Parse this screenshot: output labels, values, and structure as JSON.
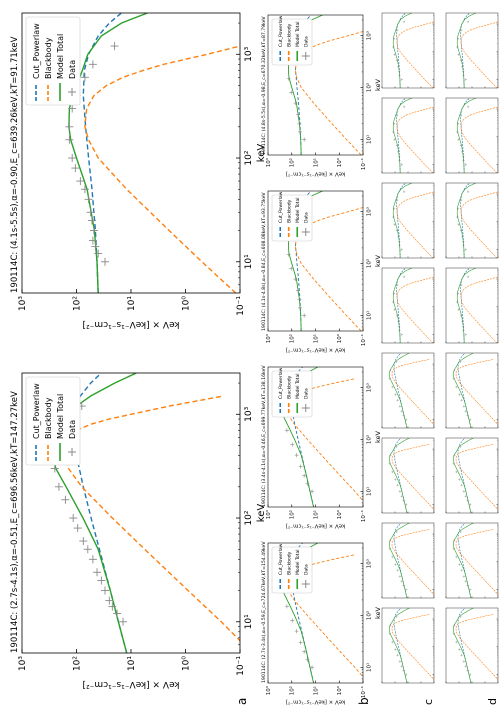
{
  "figure_labels": {
    "a": "a",
    "b": "b",
    "c": "c",
    "d": "d"
  },
  "chart_data": [
    {
      "type": "line",
      "panel": "a",
      "title": "190114C: (2.7s-4.1s),α=-0.51,E_c=696.56keV,kT=147.27keV",
      "xlabel": "keV",
      "ylabel": "keV × [keV⁻¹s⁻¹cm⁻²]",
      "xscale": "log",
      "yscale": "log",
      "xlim": [
        5,
        2500
      ],
      "ylim": [
        0.1,
        1000
      ],
      "xticks": [
        "10¹",
        "10²",
        "10³"
      ],
      "yticks": [
        "10⁻¹",
        "10⁰",
        "10¹",
        "10²",
        "10³"
      ],
      "legend": {
        "position": "top-right",
        "entries": [
          "Cut_Powerlaw",
          "Blackbody",
          "Model Total",
          "Data"
        ]
      },
      "series": [
        {
          "name": "Cut_Powerlaw",
          "color": "#1f77b4",
          "style": "dashed",
          "x": [
            5,
            10,
            20,
            50,
            100,
            200,
            400,
            700,
            1000,
            1500,
            2000,
            2500
          ],
          "y": [
            12,
            17,
            24,
            38,
            54,
            75,
            100,
            120,
            115,
            85,
            55,
            35
          ]
        },
        {
          "name": "Blackbody",
          "color": "#ff7f0e",
          "style": "dashed",
          "x": [
            5,
            10,
            20,
            50,
            100,
            200,
            300,
            400,
            500,
            600,
            700,
            800,
            900,
            1000,
            1200,
            1500
          ],
          "y": [
            0.06,
            0.22,
            0.9,
            5.6,
            22,
            80,
            140,
            170,
            168,
            140,
            100,
            55,
            25,
            10,
            2,
            0.2
          ]
        },
        {
          "name": "Model Total",
          "color": "#2ca02c",
          "style": "solid",
          "x": [
            5,
            10,
            20,
            50,
            100,
            200,
            300,
            400,
            500,
            600,
            700,
            800,
            1000,
            1200,
            1500,
            2000,
            2500
          ],
          "y": [
            12,
            17,
            24,
            40,
            76,
            155,
            240,
            270,
            265,
            235,
            200,
            160,
            125,
            100,
            55,
            20,
            8
          ]
        },
        {
          "name": "Data",
          "color": "#888888",
          "style": "points",
          "x": [
            10,
            12,
            14,
            16,
            20,
            25,
            30,
            40,
            50,
            60,
            80,
            100,
            150,
            200,
            300,
            400,
            600,
            800,
            1200
          ],
          "y": [
            14,
            18,
            22,
            25,
            30,
            35,
            42,
            50,
            62,
            75,
            95,
            115,
            160,
            210,
            250,
            265,
            230,
            180,
            80
          ]
        }
      ]
    },
    {
      "type": "line",
      "panel": "a2",
      "title": "190114C: (4.1s-5.5s),α=-0.90,E_c=639.26keV,kT=91.71keV",
      "xlabel": "keV",
      "ylabel": "keV × [keV⁻¹s⁻¹cm⁻²]",
      "xscale": "log",
      "yscale": "log",
      "xlim": [
        5,
        2500
      ],
      "ylim": [
        0.1,
        1000
      ],
      "xticks": [
        "10¹",
        "10²",
        "10³"
      ],
      "yticks": [
        "10⁻¹",
        "10⁰",
        "10¹",
        "10²",
        "10³"
      ],
      "legend": {
        "position": "top-right",
        "entries": [
          "Cut_Powerlaw",
          "Blackbody",
          "Model Total",
          "Data"
        ]
      },
      "series": [
        {
          "name": "Cut_Powerlaw",
          "color": "#1f77b4",
          "style": "dashed",
          "x": [
            5,
            10,
            20,
            50,
            100,
            200,
            400,
            700,
            1000,
            1500,
            2000,
            2500
          ],
          "y": [
            40,
            42,
            45,
            52,
            60,
            68,
            75,
            72,
            60,
            40,
            25,
            15
          ]
        },
        {
          "name": "Blackbody",
          "color": "#ff7f0e",
          "style": "dashed",
          "x": [
            5,
            10,
            20,
            50,
            100,
            150,
            200,
            300,
            400,
            500,
            600,
            700,
            800,
            1000,
            1200
          ],
          "y": [
            0.12,
            0.5,
            2,
            12,
            40,
            60,
            70,
            65,
            48,
            28,
            14,
            6,
            2.5,
            0.4,
            0.1
          ]
        },
        {
          "name": "Model Total",
          "color": "#2ca02c",
          "style": "solid",
          "x": [
            5,
            10,
            20,
            50,
            100,
            150,
            200,
            300,
            400,
            500,
            700,
            1000,
            1500,
            2000,
            2500
          ],
          "y": [
            40,
            42,
            47,
            64,
            100,
            128,
            138,
            135,
            118,
            100,
            78,
            62,
            35,
            15,
            5
          ]
        },
        {
          "name": "Data",
          "color": "#888888",
          "style": "points",
          "x": [
            10,
            12,
            14,
            16,
            20,
            25,
            30,
            40,
            50,
            60,
            80,
            100,
            150,
            200,
            300,
            400,
            600,
            800,
            1200
          ],
          "y": [
            30,
            40,
            45,
            50,
            48,
            52,
            55,
            60,
            70,
            85,
            105,
            120,
            135,
            135,
            120,
            100,
            70,
            50,
            20
          ]
        }
      ]
    },
    {
      "type": "line",
      "panel": "b",
      "title": "190114C: (2.7s-3.4s),α=-0.59,E_c=724.67keV,kT=154.49keV",
      "xlabel": "keV",
      "ylabel": "keV × [keV⁻¹s⁻¹cm⁻²]",
      "xscale": "log",
      "yscale": "log",
      "xlim": [
        5,
        2500
      ],
      "ylim": [
        0.1,
        1000
      ],
      "xticks": [
        "10¹",
        "10²",
        "10³"
      ],
      "yticks": [
        "10⁻¹",
        "10⁰",
        "10¹",
        "10²",
        "10³"
      ],
      "legend": {
        "position": "top-right",
        "entries": [
          "Cut_Powerlaw",
          "Blackbody",
          "Model Total",
          "Data"
        ]
      },
      "series": [
        {
          "name": "Cut_Powerlaw",
          "color": "#1f77b4",
          "style": "dashed",
          "x": [
            5,
            10,
            20,
            50,
            100,
            200,
            400,
            700,
            1000,
            1500,
            2000,
            2500
          ],
          "y": [
            12,
            17,
            24,
            38,
            54,
            75,
            100,
            120,
            115,
            85,
            55,
            35
          ]
        },
        {
          "name": "Blackbody",
          "color": "#ff7f0e",
          "style": "dashed",
          "x": [
            5,
            10,
            20,
            50,
            100,
            200,
            300,
            400,
            500,
            600,
            700,
            800,
            900,
            1000,
            1200,
            1500
          ],
          "y": [
            0.06,
            0.22,
            0.9,
            5.6,
            22,
            80,
            140,
            170,
            168,
            140,
            100,
            55,
            25,
            10,
            2,
            0.2
          ]
        },
        {
          "name": "Model Total",
          "color": "#2ca02c",
          "style": "solid",
          "x": [
            5,
            10,
            20,
            50,
            100,
            200,
            300,
            400,
            500,
            600,
            700,
            800,
            1000,
            1200,
            1500,
            2000,
            2500
          ],
          "y": [
            12,
            17,
            24,
            40,
            76,
            155,
            240,
            270,
            265,
            235,
            200,
            160,
            125,
            100,
            55,
            20,
            8
          ]
        },
        {
          "name": "Data",
          "color": "#888888",
          "style": "points",
          "x": [
            10,
            14,
            20,
            30,
            50,
            80,
            150,
            300,
            600,
            1200
          ],
          "y": [
            14,
            22,
            30,
            42,
            62,
            95,
            160,
            250,
            230,
            80
          ]
        }
      ]
    },
    {
      "type": "line",
      "panel": "b2",
      "title": "190114C: (3.4s-4.1s),α=-0.46,E_c=699.77keV,kT=138.16keV",
      "xlabel": "keV",
      "ylabel": "keV × [keV⁻¹s⁻¹cm⁻²]",
      "xscale": "log",
      "yscale": "log",
      "xlim": [
        5,
        2500
      ],
      "ylim": [
        0.1,
        1000
      ],
      "xticks": [
        "10¹",
        "10²",
        "10³"
      ],
      "yticks": [
        "10⁻¹",
        "10⁰",
        "10¹",
        "10²",
        "10³"
      ],
      "legend": {
        "position": "top-right",
        "entries": [
          "Cut_Powerlaw",
          "Blackbody",
          "Model Total",
          "Data"
        ]
      },
      "series": [
        {
          "name": "Cut_Powerlaw",
          "color": "#1f77b4",
          "style": "dashed",
          "x": [
            5,
            10,
            20,
            50,
            100,
            200,
            400,
            700,
            1000,
            1500,
            2000,
            2500
          ],
          "y": [
            12,
            17,
            24,
            38,
            54,
            75,
            100,
            120,
            115,
            85,
            55,
            35
          ]
        },
        {
          "name": "Blackbody",
          "color": "#ff7f0e",
          "style": "dashed",
          "x": [
            5,
            10,
            20,
            50,
            100,
            200,
            300,
            400,
            500,
            600,
            700,
            800,
            900,
            1000,
            1200,
            1500
          ],
          "y": [
            0.06,
            0.22,
            0.9,
            5.6,
            22,
            80,
            140,
            170,
            168,
            140,
            100,
            55,
            25,
            10,
            2,
            0.2
          ]
        },
        {
          "name": "Model Total",
          "color": "#2ca02c",
          "style": "solid",
          "x": [
            5,
            10,
            20,
            50,
            100,
            200,
            300,
            400,
            500,
            600,
            700,
            800,
            1000,
            1200,
            1500,
            2000,
            2500
          ],
          "y": [
            12,
            17,
            24,
            40,
            76,
            155,
            240,
            270,
            265,
            235,
            200,
            160,
            125,
            100,
            55,
            20,
            8
          ]
        },
        {
          "name": "Data",
          "color": "#888888",
          "style": "points",
          "x": [
            10,
            14,
            20,
            30,
            50,
            80,
            150,
            300,
            600,
            1200
          ],
          "y": [
            14,
            22,
            30,
            42,
            62,
            95,
            160,
            250,
            230,
            80
          ]
        }
      ]
    },
    {
      "type": "line",
      "panel": "b3",
      "title": "190114C: (4.1s-4.8s),α=-0.84,E_c=608.08keV,kT=93.75keV",
      "xlabel": "keV",
      "ylabel": "keV × [keV⁻¹s⁻¹cm⁻²]",
      "xscale": "log",
      "yscale": "log",
      "xlim": [
        5,
        2500
      ],
      "ylim": [
        0.1,
        1000
      ],
      "xticks": [
        "10¹",
        "10²",
        "10³"
      ],
      "yticks": [
        "10⁻¹",
        "10⁰",
        "10¹",
        "10²",
        "10³"
      ],
      "legend": {
        "position": "top-right",
        "entries": [
          "Cut_Powerlaw",
          "Blackbody",
          "Model Total",
          "Data"
        ]
      },
      "series": [
        {
          "name": "Cut_Powerlaw",
          "color": "#1f77b4",
          "style": "dashed",
          "x": [
            5,
            10,
            20,
            50,
            100,
            200,
            400,
            700,
            1000,
            1500,
            2000,
            2500
          ],
          "y": [
            40,
            42,
            45,
            52,
            60,
            68,
            75,
            72,
            60,
            40,
            25,
            15
          ]
        },
        {
          "name": "Blackbody",
          "color": "#ff7f0e",
          "style": "dashed",
          "x": [
            5,
            10,
            20,
            50,
            100,
            150,
            200,
            300,
            400,
            500,
            600,
            700,
            800,
            1000,
            1200
          ],
          "y": [
            0.12,
            0.5,
            2,
            12,
            40,
            60,
            70,
            65,
            48,
            28,
            14,
            6,
            2.5,
            0.4,
            0.1
          ]
        },
        {
          "name": "Model Total",
          "color": "#2ca02c",
          "style": "solid",
          "x": [
            5,
            10,
            20,
            50,
            100,
            150,
            200,
            300,
            400,
            500,
            700,
            1000,
            1500,
            2000,
            2500
          ],
          "y": [
            40,
            42,
            47,
            64,
            100,
            128,
            138,
            135,
            118,
            100,
            78,
            62,
            35,
            15,
            5
          ]
        },
        {
          "name": "Data",
          "color": "#888888",
          "style": "points",
          "x": [
            10,
            14,
            20,
            30,
            50,
            80,
            150,
            300,
            600,
            1200
          ],
          "y": [
            30,
            45,
            48,
            55,
            70,
            105,
            135,
            120,
            70,
            20
          ]
        }
      ]
    },
    {
      "type": "line",
      "panel": "b4",
      "title": "190114C: (4.8s-5.5s),α=-0.98,E_c=670.32keV,kT=87.79keV",
      "xlabel": "keV",
      "ylabel": "keV × [keV⁻¹s⁻¹cm⁻²]",
      "xscale": "log",
      "yscale": "log",
      "xlim": [
        5,
        2500
      ],
      "ylim": [
        0.1,
        1000
      ],
      "xticks": [
        "10¹",
        "10²",
        "10³"
      ],
      "yticks": [
        "10⁻¹",
        "10⁰",
        "10¹",
        "10²",
        "10³"
      ],
      "legend": {
        "position": "top-right",
        "entries": [
          "Cut_Powerlaw",
          "Blackbody",
          "Model Total",
          "Data"
        ]
      },
      "series": [
        {
          "name": "Cut_Powerlaw",
          "color": "#1f77b4",
          "style": "dashed",
          "x": [
            5,
            10,
            20,
            50,
            100,
            200,
            400,
            700,
            1000,
            1500,
            2000,
            2500
          ],
          "y": [
            40,
            42,
            45,
            52,
            60,
            68,
            75,
            72,
            60,
            40,
            25,
            15
          ]
        },
        {
          "name": "Blackbody",
          "color": "#ff7f0e",
          "style": "dashed",
          "x": [
            5,
            10,
            20,
            50,
            100,
            150,
            200,
            300,
            400,
            500,
            600,
            700,
            800,
            1000,
            1200
          ],
          "y": [
            0.12,
            0.5,
            2,
            12,
            40,
            60,
            70,
            65,
            48,
            28,
            14,
            6,
            2.5,
            0.4,
            0.1
          ]
        },
        {
          "name": "Model Total",
          "color": "#2ca02c",
          "style": "solid",
          "x": [
            5,
            10,
            20,
            50,
            100,
            150,
            200,
            300,
            400,
            500,
            700,
            1000,
            1500,
            2000,
            2500
          ],
          "y": [
            40,
            42,
            47,
            64,
            100,
            128,
            138,
            135,
            118,
            100,
            78,
            62,
            35,
            15,
            5
          ]
        },
        {
          "name": "Data",
          "color": "#888888",
          "style": "points",
          "x": [
            10,
            14,
            20,
            30,
            50,
            80,
            150,
            300,
            600,
            1200
          ],
          "y": [
            30,
            45,
            48,
            55,
            70,
            105,
            135,
            120,
            70,
            20
          ]
        }
      ]
    }
  ]
}
